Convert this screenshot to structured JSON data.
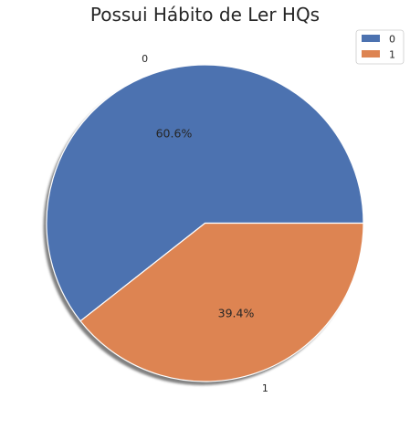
{
  "chart_data": {
    "type": "pie",
    "title": "Possui Hábito de Ler HQs",
    "categories": [
      "0",
      "1"
    ],
    "values": [
      60.6,
      39.4
    ],
    "value_labels": [
      "60.6%",
      "39.4%"
    ],
    "colors": [
      "#4c72b0",
      "#dd8452"
    ],
    "legend": {
      "placement": "top-right",
      "entries": [
        "0",
        "1"
      ]
    },
    "shadow": true,
    "start_angle_deg": 0,
    "direction": "counterclockwise"
  }
}
